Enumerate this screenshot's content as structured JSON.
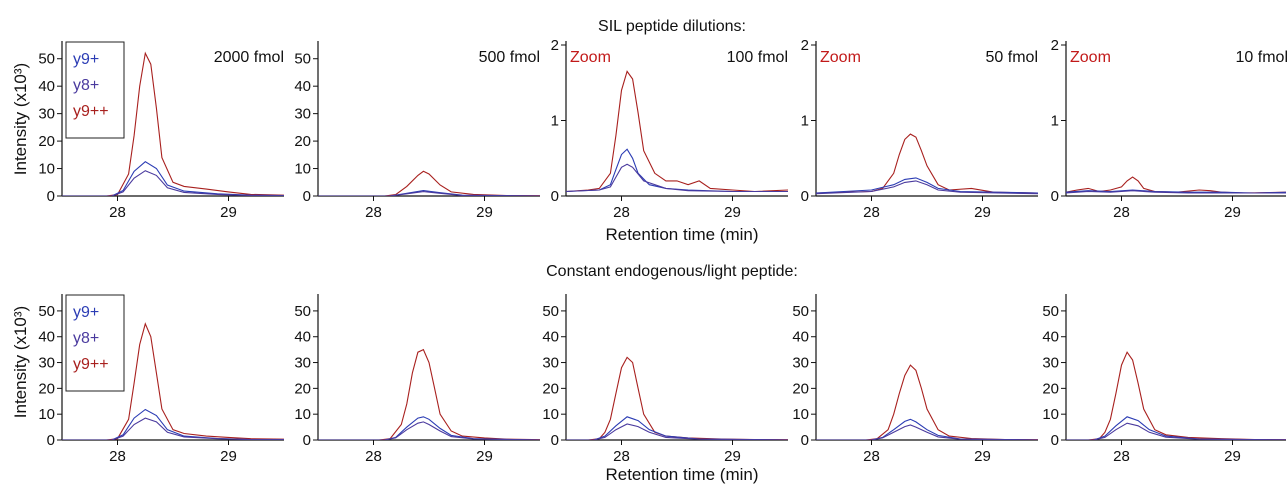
{
  "row_titles": [
    "SIL peptide dilutions:",
    "Constant endogenous/light peptide:"
  ],
  "ylabel": "Intensity (x10³)",
  "xlabel": "Retention time (min)",
  "zoom_label": "Zoom",
  "legend": [
    "y9+",
    "y8+",
    "y9++"
  ],
  "colors": {
    "y9+": "#2b3cb4",
    "y8+": "#4a3a9e",
    "y9++": "#a8201e",
    "axis": "#111111",
    "zoom": "#c21a1a"
  },
  "chart_data": [
    {
      "type": "line",
      "panel_label": "2000 fmol",
      "xlim": [
        27.5,
        29.5
      ],
      "ylim": [
        0,
        55
      ],
      "x_ticks": [
        28,
        29
      ],
      "y_ticks": [
        0,
        10,
        20,
        30,
        40,
        50
      ],
      "legend_shown": true,
      "series": [
        {
          "name": "y9++",
          "x": [
            27.5,
            27.9,
            28.0,
            28.1,
            28.15,
            28.2,
            28.25,
            28.3,
            28.35,
            28.4,
            28.5,
            28.6,
            28.8,
            29.0,
            29.2,
            29.5
          ],
          "values": [
            0,
            0,
            0.5,
            8,
            22,
            40,
            52,
            48,
            32,
            14,
            5,
            3.5,
            2.5,
            1.5,
            0.6,
            0.3
          ]
        },
        {
          "name": "y9+",
          "x": [
            27.5,
            27.95,
            28.05,
            28.15,
            28.25,
            28.35,
            28.45,
            28.6,
            28.9,
            29.2,
            29.5
          ],
          "values": [
            0,
            0,
            2,
            9,
            12.5,
            10,
            4,
            1.8,
            0.8,
            0.3,
            0.2
          ]
        },
        {
          "name": "y8+",
          "x": [
            27.5,
            27.95,
            28.05,
            28.15,
            28.25,
            28.35,
            28.45,
            28.6,
            28.9,
            29.2,
            29.5
          ],
          "values": [
            0,
            0,
            1.5,
            6.5,
            9.2,
            7.5,
            3,
            1.3,
            0.6,
            0.2,
            0.1
          ]
        }
      ]
    },
    {
      "type": "line",
      "panel_label": "500 fmol",
      "xlim": [
        27.5,
        29.5
      ],
      "ylim": [
        0,
        55
      ],
      "x_ticks": [
        28,
        29
      ],
      "y_ticks": [
        0,
        10,
        20,
        30,
        40,
        50
      ],
      "series": [
        {
          "name": "y9++",
          "x": [
            27.5,
            28.1,
            28.2,
            28.3,
            28.4,
            28.45,
            28.5,
            28.6,
            28.7,
            28.9,
            29.2,
            29.5
          ],
          "values": [
            0,
            0,
            0.5,
            3.5,
            7.5,
            9,
            8,
            4,
            1.5,
            0.6,
            0.2,
            0.1
          ]
        },
        {
          "name": "y9+",
          "x": [
            27.5,
            28.15,
            28.3,
            28.45,
            28.6,
            28.8,
            29.5
          ],
          "values": [
            0,
            0,
            1,
            2,
            1.2,
            0.3,
            0
          ]
        },
        {
          "name": "y8+",
          "x": [
            27.5,
            28.15,
            28.3,
            28.45,
            28.6,
            28.8,
            29.5
          ],
          "values": [
            0,
            0,
            0.8,
            1.6,
            1,
            0.2,
            0
          ]
        }
      ]
    },
    {
      "type": "line",
      "panel_label": "100 fmol",
      "zoom": true,
      "xlim": [
        27.5,
        29.5
      ],
      "ylim": [
        0,
        2
      ],
      "x_ticks": [
        28,
        29
      ],
      "y_ticks": [
        0,
        1,
        2
      ],
      "series": [
        {
          "name": "y9++",
          "x": [
            27.5,
            27.7,
            27.8,
            27.9,
            27.95,
            28.0,
            28.05,
            28.1,
            28.15,
            28.2,
            28.3,
            28.4,
            28.5,
            28.6,
            28.7,
            28.8,
            29.0,
            29.2,
            29.5
          ],
          "values": [
            0.06,
            0.08,
            0.1,
            0.3,
            0.8,
            1.4,
            1.65,
            1.55,
            1.1,
            0.6,
            0.3,
            0.2,
            0.2,
            0.15,
            0.2,
            0.1,
            0.08,
            0.06,
            0.08
          ]
        },
        {
          "name": "y9+",
          "x": [
            27.5,
            27.8,
            27.9,
            27.95,
            28.0,
            28.05,
            28.1,
            28.15,
            28.25,
            28.4,
            28.6,
            29.0,
            29.5
          ],
          "values": [
            0.06,
            0.08,
            0.15,
            0.35,
            0.55,
            0.62,
            0.5,
            0.3,
            0.15,
            0.1,
            0.08,
            0.06,
            0.06
          ]
        },
        {
          "name": "y8+",
          "x": [
            27.5,
            27.8,
            27.9,
            27.95,
            28.0,
            28.05,
            28.1,
            28.2,
            28.4,
            28.6,
            29.0,
            29.5
          ],
          "values": [
            0.06,
            0.08,
            0.12,
            0.25,
            0.38,
            0.42,
            0.38,
            0.2,
            0.1,
            0.07,
            0.06,
            0.06
          ]
        }
      ]
    },
    {
      "type": "line",
      "panel_label": "50 fmol",
      "zoom": true,
      "xlim": [
        27.5,
        29.5
      ],
      "ylim": [
        0,
        2
      ],
      "x_ticks": [
        28,
        29
      ],
      "y_ticks": [
        0,
        1,
        2
      ],
      "series": [
        {
          "name": "y9++",
          "x": [
            27.5,
            28.0,
            28.1,
            28.2,
            28.25,
            28.3,
            28.35,
            28.4,
            28.45,
            28.5,
            28.6,
            28.7,
            28.9,
            29.1,
            29.5
          ],
          "values": [
            0.04,
            0.06,
            0.1,
            0.3,
            0.55,
            0.75,
            0.82,
            0.78,
            0.6,
            0.4,
            0.15,
            0.08,
            0.1,
            0.05,
            0.04
          ]
        },
        {
          "name": "y9+",
          "x": [
            27.5,
            28.0,
            28.2,
            28.3,
            28.4,
            28.5,
            28.6,
            28.8,
            29.5
          ],
          "values": [
            0.04,
            0.08,
            0.15,
            0.22,
            0.24,
            0.18,
            0.1,
            0.06,
            0.04
          ]
        },
        {
          "name": "y8+",
          "x": [
            27.5,
            28.0,
            28.2,
            28.3,
            28.4,
            28.5,
            28.6,
            28.8,
            29.5
          ],
          "values": [
            0.03,
            0.06,
            0.12,
            0.18,
            0.2,
            0.15,
            0.08,
            0.05,
            0.03
          ]
        }
      ]
    },
    {
      "type": "line",
      "panel_label": "10 fmol",
      "zoom": true,
      "xlim": [
        27.5,
        29.5
      ],
      "ylim": [
        0,
        2
      ],
      "x_ticks": [
        28,
        29
      ],
      "y_ticks": [
        0,
        1,
        2
      ],
      "series": [
        {
          "name": "y9++",
          "x": [
            27.5,
            27.6,
            27.7,
            27.8,
            27.9,
            28.0,
            28.05,
            28.1,
            28.15,
            28.2,
            28.3,
            28.5,
            28.7,
            28.8,
            28.9,
            29.1,
            29.5
          ],
          "values": [
            0.05,
            0.08,
            0.1,
            0.06,
            0.08,
            0.12,
            0.2,
            0.25,
            0.2,
            0.1,
            0.06,
            0.05,
            0.08,
            0.07,
            0.05,
            0.04,
            0.05
          ]
        },
        {
          "name": "y9+",
          "x": [
            27.5,
            27.7,
            27.9,
            28.1,
            28.3,
            28.6,
            28.9,
            29.2,
            29.5
          ],
          "values": [
            0.05,
            0.07,
            0.06,
            0.08,
            0.06,
            0.05,
            0.05,
            0.04,
            0.05
          ]
        },
        {
          "name": "y8+",
          "x": [
            27.5,
            27.7,
            27.9,
            28.1,
            28.3,
            28.6,
            28.9,
            29.2,
            29.5
          ],
          "values": [
            0.04,
            0.06,
            0.05,
            0.07,
            0.05,
            0.04,
            0.04,
            0.04,
            0.04
          ]
        }
      ]
    },
    {
      "type": "line",
      "xlim": [
        27.5,
        29.5
      ],
      "ylim": [
        0,
        55
      ],
      "x_ticks": [
        28,
        29
      ],
      "y_ticks": [
        0,
        10,
        20,
        30,
        40,
        50
      ],
      "legend_shown": true,
      "series": [
        {
          "name": "y9++",
          "x": [
            27.5,
            27.9,
            28.0,
            28.1,
            28.15,
            28.2,
            28.25,
            28.3,
            28.35,
            28.4,
            28.5,
            28.6,
            28.8,
            29.0,
            29.2,
            29.5
          ],
          "values": [
            0,
            0,
            0.5,
            8,
            22,
            37,
            45,
            40,
            26,
            12,
            4,
            2.5,
            1.5,
            1,
            0.5,
            0.3
          ]
        },
        {
          "name": "y9+",
          "x": [
            27.5,
            27.95,
            28.05,
            28.15,
            28.25,
            28.35,
            28.45,
            28.6,
            28.9,
            29.2,
            29.5
          ],
          "values": [
            0,
            0,
            2,
            8.5,
            11.8,
            9.5,
            4,
            1.5,
            0.6,
            0.2,
            0.1
          ]
        },
        {
          "name": "y8+",
          "x": [
            27.5,
            27.95,
            28.05,
            28.15,
            28.25,
            28.35,
            28.45,
            28.6,
            28.9,
            29.2,
            29.5
          ],
          "values": [
            0,
            0,
            1.5,
            6,
            8.5,
            7,
            3,
            1.2,
            0.5,
            0.2,
            0.1
          ]
        }
      ]
    },
    {
      "type": "line",
      "xlim": [
        27.5,
        29.5
      ],
      "ylim": [
        0,
        55
      ],
      "x_ticks": [
        28,
        29
      ],
      "y_ticks": [
        0,
        10,
        20,
        30,
        40,
        50
      ],
      "series": [
        {
          "name": "y9++",
          "x": [
            27.5,
            28.05,
            28.15,
            28.25,
            28.3,
            28.35,
            28.4,
            28.45,
            28.5,
            28.55,
            28.6,
            28.7,
            28.8,
            29.0,
            29.2,
            29.5
          ],
          "values": [
            0,
            0,
            0.5,
            6,
            14,
            26,
            34,
            35,
            30,
            20,
            10,
            3.5,
            1.5,
            0.8,
            0.3,
            0.1
          ]
        },
        {
          "name": "y9+",
          "x": [
            27.5,
            28.1,
            28.2,
            28.3,
            28.4,
            28.45,
            28.5,
            28.6,
            28.7,
            28.9,
            29.5
          ],
          "values": [
            0,
            0,
            1,
            5,
            8.5,
            9,
            8,
            4.5,
            1.8,
            0.5,
            0
          ]
        },
        {
          "name": "y8+",
          "x": [
            27.5,
            28.1,
            28.2,
            28.3,
            28.4,
            28.45,
            28.5,
            28.6,
            28.7,
            28.9,
            29.5
          ],
          "values": [
            0,
            0,
            0.8,
            4,
            6.5,
            7,
            6,
            3.5,
            1.3,
            0.4,
            0
          ]
        }
      ]
    },
    {
      "type": "line",
      "xlim": [
        27.5,
        29.5
      ],
      "ylim": [
        0,
        55
      ],
      "x_ticks": [
        28,
        29
      ],
      "y_ticks": [
        0,
        10,
        20,
        30,
        40,
        50
      ],
      "series": [
        {
          "name": "y9++",
          "x": [
            27.5,
            27.7,
            27.8,
            27.85,
            27.9,
            27.95,
            28.0,
            28.05,
            28.1,
            28.15,
            28.2,
            28.3,
            28.4,
            28.6,
            28.9,
            29.2,
            29.5
          ],
          "values": [
            0,
            0,
            0.5,
            3,
            8,
            18,
            28,
            32,
            30,
            20,
            10,
            3,
            1.5,
            0.8,
            0.4,
            0.2,
            0.1
          ]
        },
        {
          "name": "y9+",
          "x": [
            27.5,
            27.75,
            27.85,
            27.95,
            28.05,
            28.15,
            28.25,
            28.4,
            28.7,
            29.5
          ],
          "values": [
            0,
            0,
            1.5,
            5.5,
            9,
            7.5,
            4,
            1.5,
            0.4,
            0
          ]
        },
        {
          "name": "y8+",
          "x": [
            27.5,
            27.75,
            27.85,
            27.95,
            28.05,
            28.15,
            28.25,
            28.4,
            28.7,
            29.5
          ],
          "values": [
            0,
            0,
            1,
            4,
            6.2,
            5.2,
            3,
            1,
            0.3,
            0
          ]
        }
      ]
    },
    {
      "type": "line",
      "xlim": [
        27.5,
        29.5
      ],
      "ylim": [
        0,
        55
      ],
      "x_ticks": [
        28,
        29
      ],
      "y_ticks": [
        0,
        10,
        20,
        30,
        40,
        50
      ],
      "series": [
        {
          "name": "y9++",
          "x": [
            27.5,
            27.95,
            28.05,
            28.15,
            28.2,
            28.25,
            28.3,
            28.35,
            28.4,
            28.45,
            28.5,
            28.6,
            28.7,
            28.9,
            29.2,
            29.5
          ],
          "values": [
            0,
            0,
            0.5,
            4,
            10,
            18,
            25,
            29,
            27,
            20,
            12,
            4,
            1.5,
            0.6,
            0.2,
            0.1
          ]
        },
        {
          "name": "y9+",
          "x": [
            27.5,
            28.0,
            28.1,
            28.2,
            28.3,
            28.35,
            28.4,
            28.5,
            28.6,
            28.8,
            29.5
          ],
          "values": [
            0,
            0,
            1,
            4,
            7.2,
            8,
            7,
            4,
            1.8,
            0.4,
            0
          ]
        },
        {
          "name": "y8+",
          "x": [
            27.5,
            28.0,
            28.1,
            28.2,
            28.3,
            28.35,
            28.4,
            28.5,
            28.6,
            28.8,
            29.5
          ],
          "values": [
            0,
            0,
            0.8,
            3,
            5.2,
            5.8,
            5,
            3,
            1.2,
            0.3,
            0
          ]
        }
      ]
    },
    {
      "type": "line",
      "xlim": [
        27.5,
        29.5
      ],
      "ylim": [
        0,
        55
      ],
      "x_ticks": [
        28,
        29
      ],
      "y_ticks": [
        0,
        10,
        20,
        30,
        40,
        50
      ],
      "series": [
        {
          "name": "y9++",
          "x": [
            27.5,
            27.7,
            27.8,
            27.85,
            27.9,
            27.95,
            28.0,
            28.05,
            28.1,
            28.15,
            28.2,
            28.3,
            28.4,
            28.6,
            28.9,
            29.2,
            29.5
          ],
          "values": [
            0,
            0,
            0.5,
            3,
            8,
            18,
            29,
            34,
            31,
            22,
            12,
            4,
            2,
            1,
            0.5,
            0.2,
            0.1
          ]
        },
        {
          "name": "y9+",
          "x": [
            27.5,
            27.75,
            27.85,
            27.95,
            28.05,
            28.15,
            28.25,
            28.4,
            28.7,
            29.5
          ],
          "values": [
            0,
            0,
            1.5,
            5.5,
            9,
            7.5,
            4,
            1.5,
            0.4,
            0
          ]
        },
        {
          "name": "y8+",
          "x": [
            27.5,
            27.75,
            27.85,
            27.95,
            28.05,
            28.15,
            28.25,
            28.4,
            28.7,
            29.5
          ],
          "values": [
            0,
            0,
            1,
            4,
            6.5,
            5.5,
            3,
            1.1,
            0.3,
            0
          ]
        }
      ]
    }
  ]
}
